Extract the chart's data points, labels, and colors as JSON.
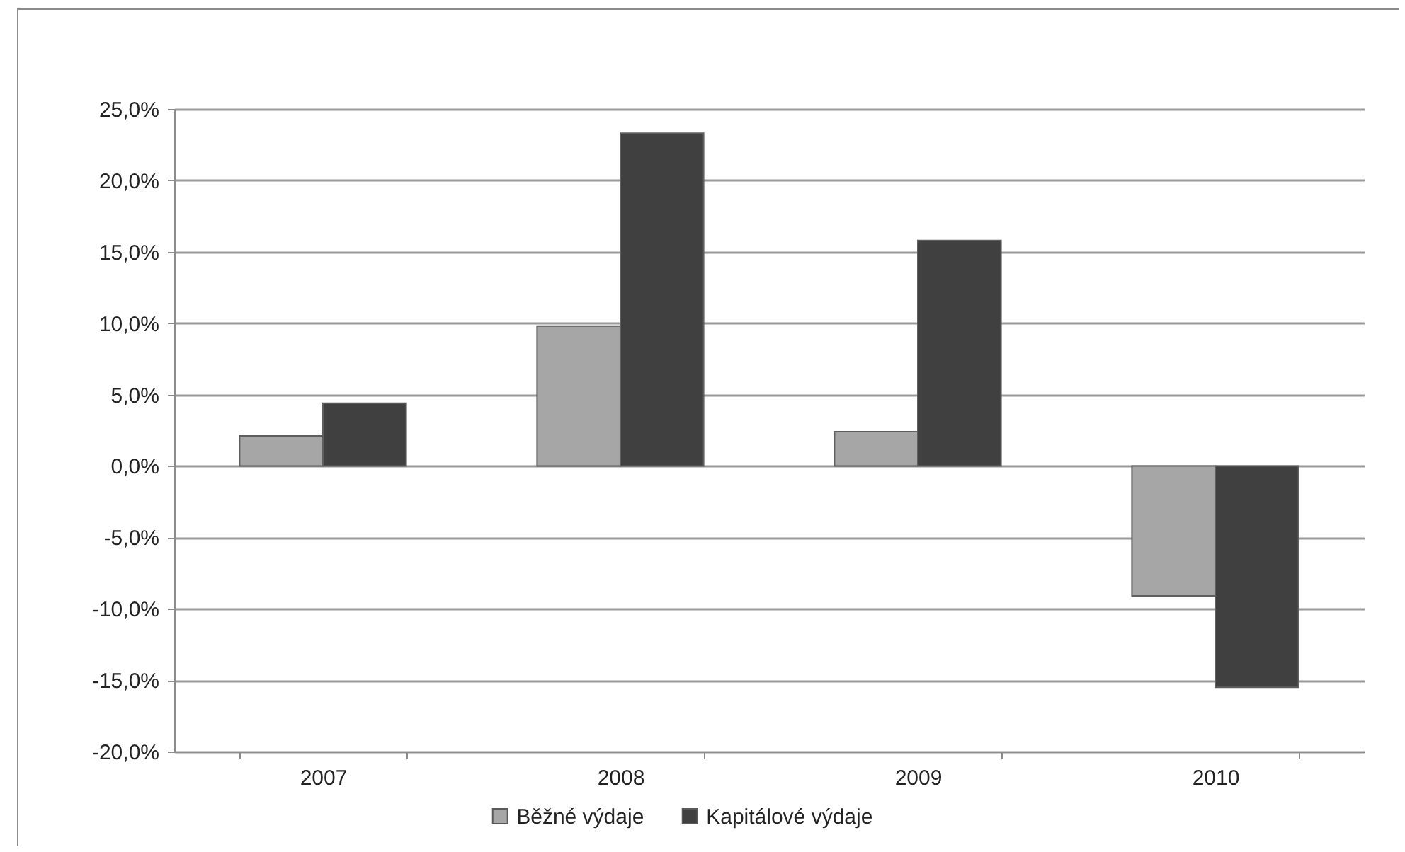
{
  "chart_data": {
    "type": "bar",
    "categories": [
      "2007",
      "2008",
      "2009",
      "2010"
    ],
    "series": [
      {
        "name": "Běžné výdaje",
        "color": "#a6a6a6",
        "values": [
          2.1,
          9.8,
          2.4,
          -9.1
        ]
      },
      {
        "name": "Kapitálové výdaje",
        "color": "#404040",
        "values": [
          4.4,
          23.3,
          15.8,
          -15.5
        ]
      }
    ],
    "ylim": [
      -20,
      25
    ],
    "yticks": [
      {
        "value": -20,
        "label": "-20,0%"
      },
      {
        "value": -15,
        "label": "-15,0%"
      },
      {
        "value": -10,
        "label": "-10,0%"
      },
      {
        "value": -5,
        "label": "-5,0%"
      },
      {
        "value": 0,
        "label": "0,0%"
      },
      {
        "value": 5,
        "label": "5,0%"
      },
      {
        "value": 10,
        "label": "10,0%"
      },
      {
        "value": 15,
        "label": "15,0%"
      },
      {
        "value": 20,
        "label": "20,0%"
      },
      {
        "value": 25,
        "label": "25,0%"
      }
    ],
    "grid": "y",
    "legend": "bottom"
  }
}
